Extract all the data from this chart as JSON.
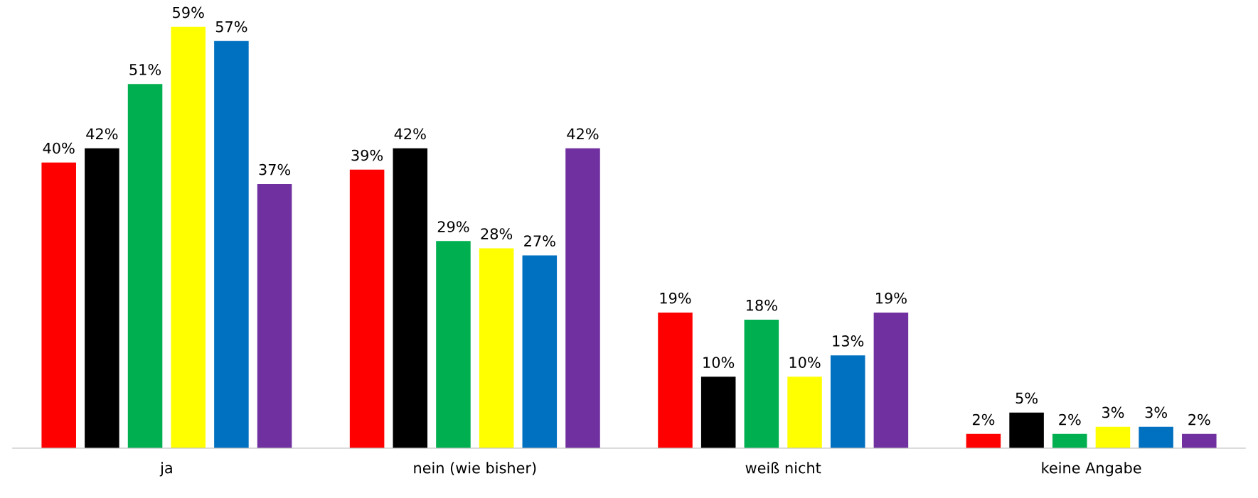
{
  "chart_data": {
    "type": "bar",
    "categories": [
      "ja",
      "nein (wie bisher)",
      "weiß nicht",
      "keine Angabe"
    ],
    "series": [
      {
        "color": "#ff0000",
        "values": [
          40,
          39,
          19,
          2
        ],
        "value_labels": [
          "40%",
          "39%",
          "19%",
          "2%"
        ]
      },
      {
        "color": "#000000",
        "values": [
          42,
          42,
          10,
          5
        ],
        "value_labels": [
          "42%",
          "42%",
          "10%",
          "5%"
        ]
      },
      {
        "color": "#00b050",
        "values": [
          51,
          29,
          18,
          2
        ],
        "value_labels": [
          "51%",
          "29%",
          "18%",
          "2%"
        ]
      },
      {
        "color": "#ffff00",
        "values": [
          59,
          28,
          10,
          3
        ],
        "value_labels": [
          "59%",
          "28%",
          "10%",
          "3%"
        ]
      },
      {
        "color": "#0070c0",
        "values": [
          57,
          27,
          13,
          3
        ],
        "value_labels": [
          "57%",
          "27%",
          "13%",
          "3%"
        ]
      },
      {
        "color": "#7030a0",
        "values": [
          37,
          42,
          19,
          2
        ],
        "value_labels": [
          "37%",
          "42%",
          "19%",
          "2%"
        ]
      }
    ],
    "grid": false,
    "legend": false
  }
}
